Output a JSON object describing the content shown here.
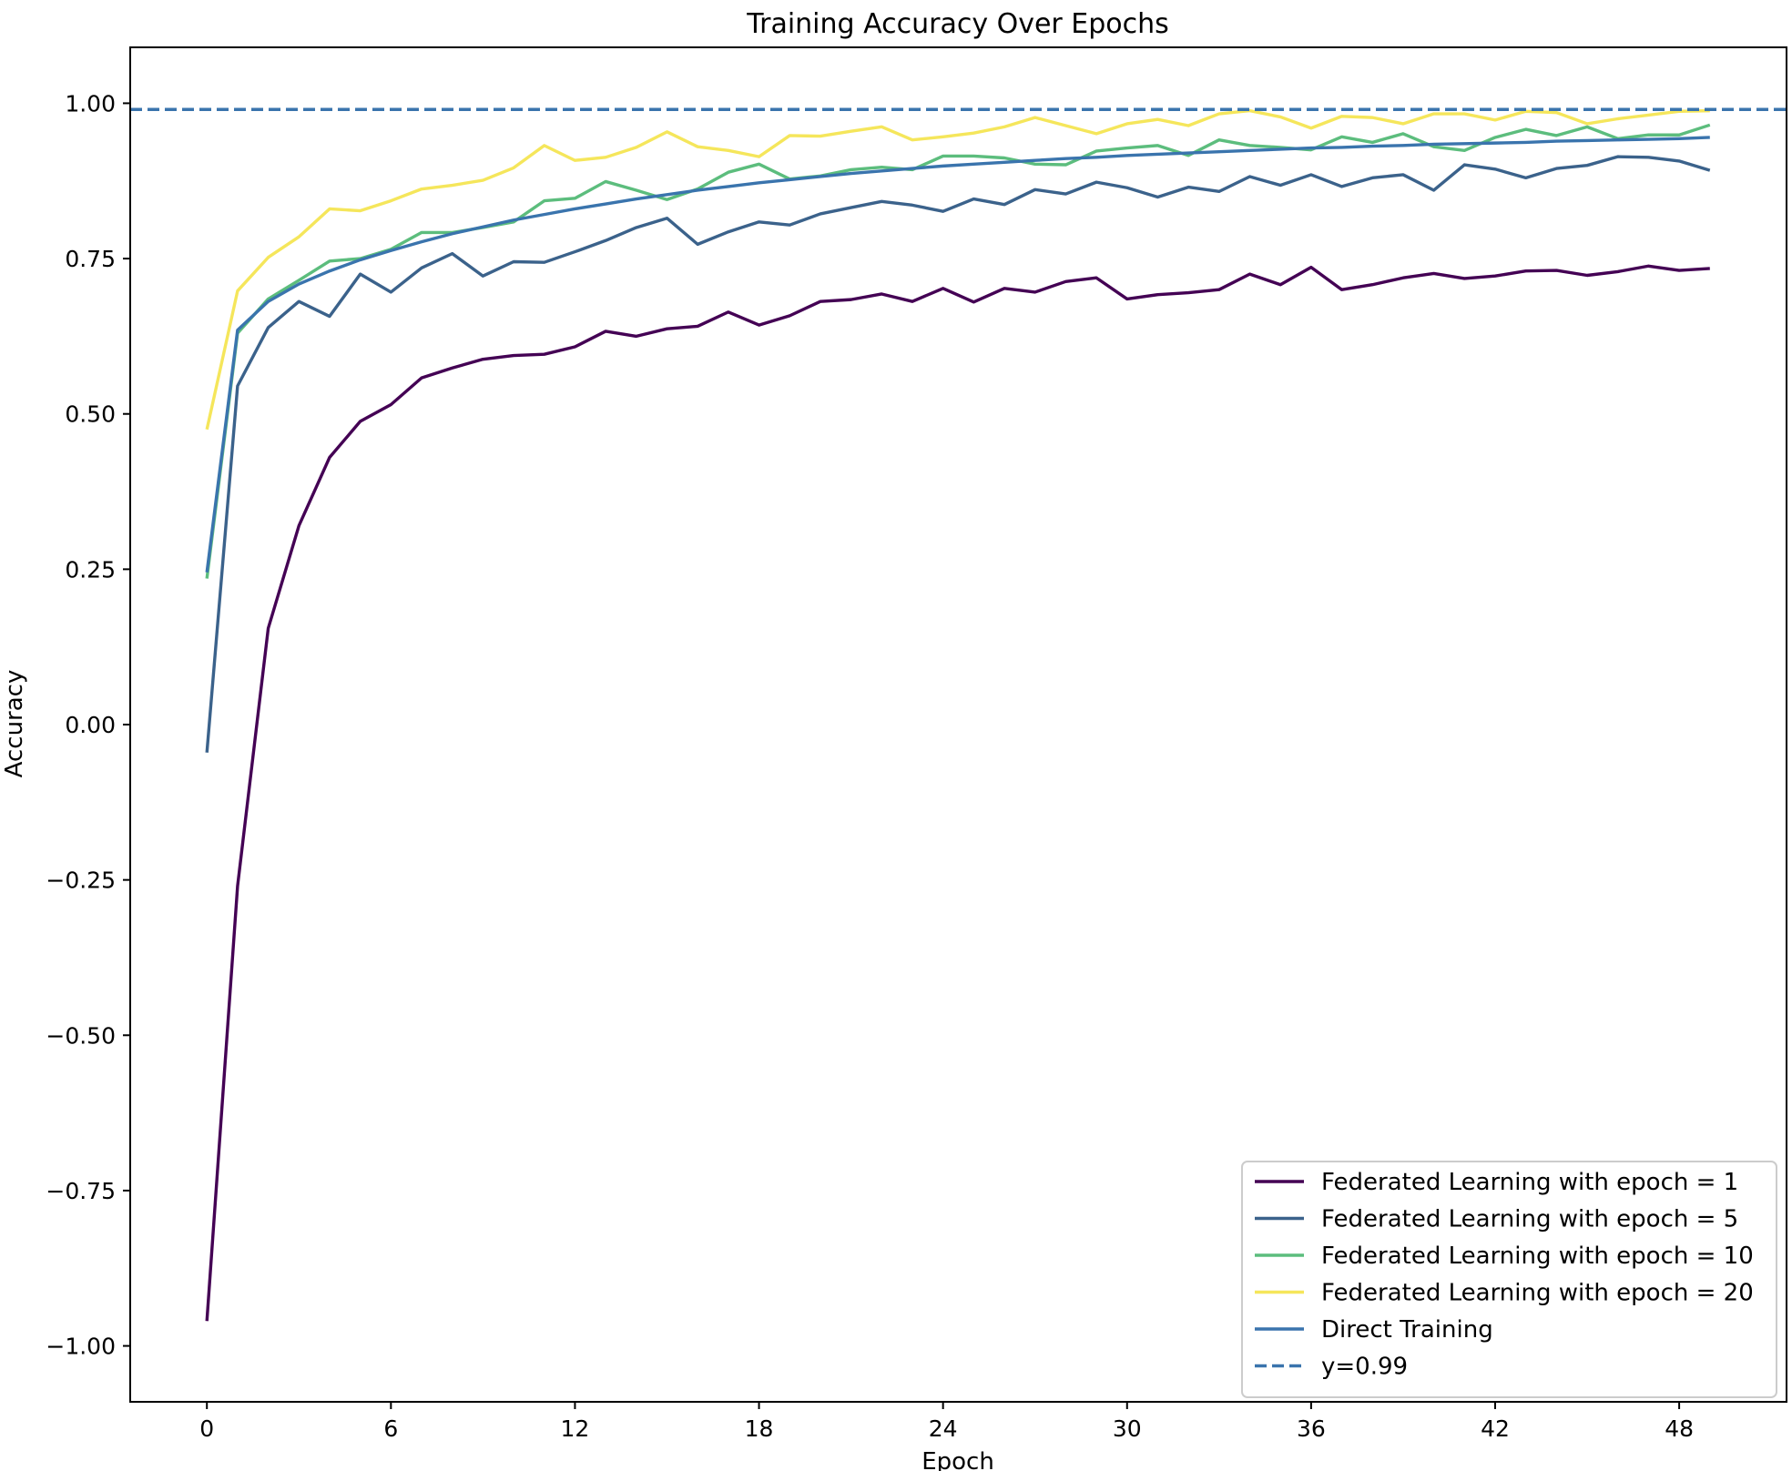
{
  "chart_data": {
    "type": "line",
    "title": "Training Accuracy Over Epochs",
    "xlabel": "Epoch",
    "ylabel": "Accuracy",
    "xlim": [
      -2.5,
      51.5
    ],
    "ylim": [
      -1.09,
      1.09
    ],
    "xticks": [
      0,
      6,
      12,
      18,
      24,
      30,
      36,
      42,
      48
    ],
    "yticks": [
      -1.0,
      -0.75,
      -0.5,
      -0.25,
      0.0,
      0.25,
      0.5,
      0.75,
      1.0
    ],
    "ytick_labels": [
      "−1.00",
      "−0.75",
      "−0.50",
      "−0.25",
      "0.00",
      "0.25",
      "0.50",
      "0.75",
      "1.00"
    ],
    "grid": false,
    "legend_position": "lower right",
    "x": [
      0,
      1,
      2,
      3,
      4,
      5,
      6,
      7,
      8,
      9,
      10,
      11,
      12,
      13,
      14,
      15,
      16,
      17,
      18,
      19,
      20,
      21,
      22,
      23,
      24,
      25,
      26,
      27,
      28,
      29,
      30,
      31,
      32,
      33,
      34,
      35,
      36,
      37,
      38,
      39,
      40,
      41,
      42,
      43,
      44,
      45,
      46,
      47,
      48,
      49
    ],
    "series": [
      {
        "name": "Federated Learning with epoch = 1",
        "color": "#440154",
        "values": [
          -0.96,
          -0.26,
          0.155,
          0.32,
          0.43,
          0.488,
          0.515,
          0.558,
          0.574,
          0.588,
          0.594,
          0.596,
          0.608,
          0.633,
          0.625,
          0.637,
          0.641,
          0.664,
          0.643,
          0.658,
          0.681,
          0.684,
          0.693,
          0.681,
          0.702,
          0.68,
          0.702,
          0.696,
          0.713,
          0.719,
          0.685,
          0.692,
          0.695,
          0.7,
          0.725,
          0.708,
          0.736,
          0.7,
          0.708,
          0.719,
          0.726,
          0.718,
          0.722,
          0.73,
          0.731,
          0.723,
          0.729,
          0.738,
          0.731,
          0.734
        ]
      },
      {
        "name": "Federated Learning with epoch = 5",
        "color": "#3b628b",
        "values": [
          -0.045,
          0.545,
          0.639,
          0.681,
          0.657,
          0.725,
          0.696,
          0.735,
          0.758,
          0.722,
          0.745,
          0.744,
          0.761,
          0.779,
          0.8,
          0.815,
          0.773,
          0.793,
          0.809,
          0.804,
          0.822,
          0.832,
          0.842,
          0.836,
          0.826,
          0.846,
          0.837,
          0.861,
          0.854,
          0.873,
          0.864,
          0.849,
          0.865,
          0.858,
          0.882,
          0.868,
          0.885,
          0.866,
          0.88,
          0.885,
          0.86,
          0.901,
          0.894,
          0.88,
          0.895,
          0.9,
          0.914,
          0.913,
          0.907,
          0.892
        ]
      },
      {
        "name": "Federated Learning with epoch = 10",
        "color": "#5cbd7d",
        "values": [
          0.235,
          0.63,
          0.685,
          0.715,
          0.746,
          0.75,
          0.765,
          0.792,
          0.792,
          0.8,
          0.809,
          0.843,
          0.847,
          0.874,
          0.86,
          0.845,
          0.862,
          0.889,
          0.902,
          0.878,
          0.883,
          0.893,
          0.897,
          0.893,
          0.915,
          0.915,
          0.912,
          0.902,
          0.901,
          0.923,
          0.928,
          0.932,
          0.916,
          0.941,
          0.932,
          0.929,
          0.925,
          0.946,
          0.937,
          0.951,
          0.93,
          0.924,
          0.945,
          0.958,
          0.948,
          0.962,
          0.943,
          0.949,
          0.949,
          0.965
        ]
      },
      {
        "name": "Federated Learning with epoch = 20",
        "color": "#f5e65b",
        "values": [
          0.475,
          0.698,
          0.752,
          0.785,
          0.83,
          0.827,
          0.843,
          0.862,
          0.868,
          0.876,
          0.896,
          0.932,
          0.908,
          0.913,
          0.929,
          0.954,
          0.93,
          0.924,
          0.914,
          0.948,
          0.947,
          0.955,
          0.962,
          0.941,
          0.946,
          0.952,
          0.962,
          0.977,
          0.964,
          0.951,
          0.967,
          0.974,
          0.964,
          0.983,
          0.988,
          0.978,
          0.96,
          0.979,
          0.977,
          0.967,
          0.983,
          0.983,
          0.973,
          0.987,
          0.985,
          0.967,
          0.975,
          0.981,
          0.987,
          0.988
        ]
      },
      {
        "name": "Direct Training",
        "color": "#3a74ad",
        "values": [
          0.245,
          0.635,
          0.681,
          0.709,
          0.73,
          0.748,
          0.763,
          0.777,
          0.79,
          0.801,
          0.812,
          0.821,
          0.83,
          0.838,
          0.846,
          0.853,
          0.86,
          0.866,
          0.872,
          0.877,
          0.882,
          0.887,
          0.891,
          0.895,
          0.899,
          0.902,
          0.905,
          0.908,
          0.911,
          0.913,
          0.916,
          0.918,
          0.92,
          0.922,
          0.924,
          0.926,
          0.928,
          0.929,
          0.931,
          0.932,
          0.934,
          0.935,
          0.936,
          0.937,
          0.939,
          0.94,
          0.941,
          0.942,
          0.943,
          0.945
        ]
      }
    ],
    "hline": {
      "name": "y=0.99",
      "value": 0.99,
      "color": "#3a74ad",
      "style": "dashed"
    }
  }
}
